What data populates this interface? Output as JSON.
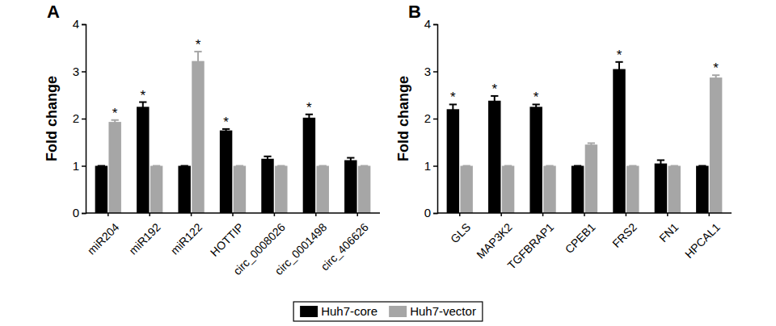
{
  "chart_data": [
    {
      "type": "bar",
      "title": "A",
      "y_label": "Fold change",
      "categories": [
        "miR204",
        "miR192",
        "miR122",
        "HOTTIP",
        "circ_0008026",
        "circ_0001498",
        "circ_406626"
      ],
      "series": [
        {
          "name": "Huh7-core",
          "color": "#000000",
          "values": [
            1.0,
            2.25,
            1.0,
            1.75,
            1.15,
            2.02,
            1.12
          ],
          "errors": [
            0,
            0.1,
            0,
            0.03,
            0.05,
            0.07,
            0.05
          ]
        },
        {
          "name": "Huh7-vector",
          "color": "#a6a6a6",
          "values": [
            1.93,
            1.0,
            3.22,
            1.0,
            1.0,
            1.0,
            1.0
          ],
          "errors": [
            0.04,
            0,
            0.2,
            0,
            0,
            0,
            0
          ]
        }
      ],
      "annotations": [
        {
          "text": "*",
          "category": "miR204",
          "series": "Huh7-vector"
        },
        {
          "text": "*",
          "category": "miR192",
          "series": "Huh7-core"
        },
        {
          "text": "*",
          "category": "miR122",
          "series": "Huh7-vector"
        },
        {
          "text": "*",
          "category": "HOTTIP",
          "series": "Huh7-core"
        },
        {
          "text": "*",
          "category": "circ_0001498",
          "series": "Huh7-core"
        }
      ],
      "ylim": [
        0,
        4
      ],
      "yticks": [
        0,
        1,
        2,
        3,
        4
      ],
      "grid": false,
      "legend": "bottom"
    },
    {
      "type": "bar",
      "title": "B",
      "y_label": "Fold change",
      "categories": [
        "GLS",
        "MAP3K2",
        "TGFBRAP1",
        "CPEB1",
        "FRS2",
        "FN1",
        "HPCAL1"
      ],
      "series": [
        {
          "name": "Huh7-core",
          "color": "#000000",
          "values": [
            2.2,
            2.38,
            2.25,
            1.0,
            3.05,
            1.05,
            1.0
          ],
          "errors": [
            0.1,
            0.1,
            0.05,
            0,
            0.15,
            0.07,
            0
          ]
        },
        {
          "name": "Huh7-vector",
          "color": "#a6a6a6",
          "values": [
            1.0,
            1.0,
            1.0,
            1.45,
            1.0,
            1.0,
            2.87
          ],
          "errors": [
            0,
            0,
            0,
            0.03,
            0,
            0,
            0.05
          ]
        }
      ],
      "annotations": [
        {
          "text": "*",
          "category": "GLS",
          "series": "Huh7-core"
        },
        {
          "text": "*",
          "category": "MAP3K2",
          "series": "Huh7-core"
        },
        {
          "text": "*",
          "category": "TGFBRAP1",
          "series": "Huh7-core"
        },
        {
          "text": "*",
          "category": "FRS2",
          "series": "Huh7-core"
        },
        {
          "text": "*",
          "category": "HPCAL1",
          "series": "Huh7-vector"
        }
      ],
      "ylim": [
        0,
        4
      ],
      "yticks": [
        0,
        1,
        2,
        3,
        4
      ],
      "grid": false
    }
  ]
}
